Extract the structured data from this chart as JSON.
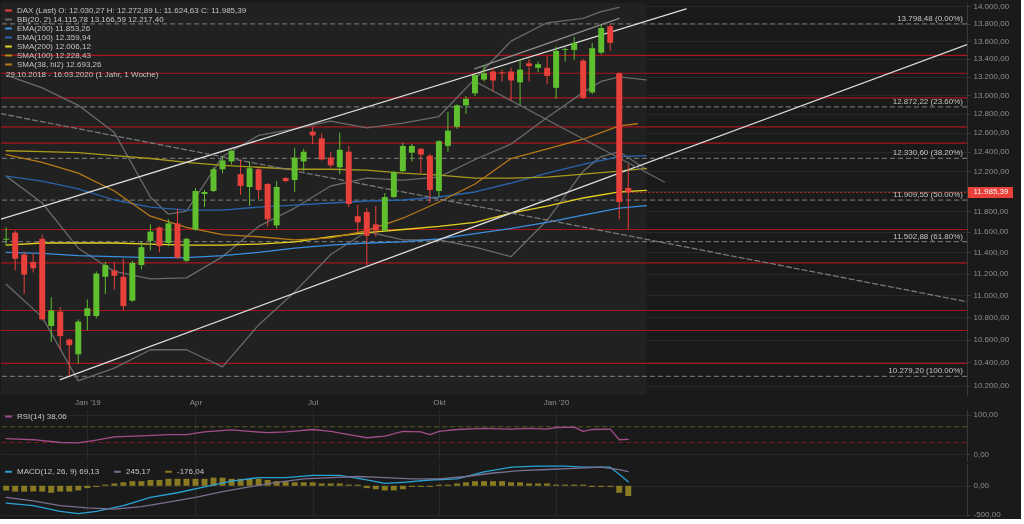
{
  "chart_data": [
    {
      "type": "candlestick",
      "log": "y",
      "xlim": [
        "2018-11-01",
        "2020-11-20"
      ],
      "xticks": [
        {
          "value": "2019-01-07",
          "label": "Jan '19"
        },
        {
          "value": "2019-04-01",
          "label": "Apr"
        },
        {
          "value": "2019-07-01",
          "label": "Jul"
        },
        {
          "value": "2019-10-07",
          "label": "Okt"
        },
        {
          "value": "2020-01-06",
          "label": "Jan '20"
        }
      ],
      "ylim": [
        10120,
        14040
      ],
      "yticks": [
        {
          "value": 10200,
          "label": "10.200,00"
        },
        {
          "value": 10400,
          "label": "10.400,00"
        },
        {
          "value": 10600,
          "label": "10.600,00"
        },
        {
          "value": 10800,
          "label": "10.800,00"
        },
        {
          "value": 11000,
          "label": "11.000,00"
        },
        {
          "value": 11200,
          "label": "11.200,00"
        },
        {
          "value": 11400,
          "label": "11.400,00"
        },
        {
          "value": 11600,
          "label": "11.600,00"
        },
        {
          "value": 11800,
          "label": "11.800,00"
        },
        {
          "value": 12000,
          "label": null
        },
        {
          "value": 12200,
          "label": "12.200,00"
        },
        {
          "value": 12400,
          "label": "12.400,00"
        },
        {
          "value": 12600,
          "label": "12.600,00"
        },
        {
          "value": 12800,
          "label": "12.800,00"
        },
        {
          "value": 13000,
          "label": "13.000,00"
        },
        {
          "value": 13200,
          "label": "13.200,00"
        },
        {
          "value": 13400,
          "label": "13.400,00"
        },
        {
          "value": 13600,
          "label": "13.600,00"
        },
        {
          "value": 13800,
          "label": "13.800,00"
        },
        {
          "value": 14000,
          "label": "14.000,00"
        }
      ],
      "grid": true,
      "legend": "top left",
      "bands": [
        {
          "axis": "x",
          "from": "2018-11-01",
          "to": "2020-03-16",
          "color": "#212121"
        }
      ],
      "ref_lines": [
        {
          "axis": "y",
          "value": 13440,
          "color": "#a8151c"
        },
        {
          "axis": "y",
          "value": 13240,
          "color": "#a8151c"
        },
        {
          "axis": "y",
          "value": 12970,
          "color": "#a8151c"
        },
        {
          "axis": "y",
          "value": 12660,
          "color": "#a8151c"
        },
        {
          "axis": "y",
          "value": 12490,
          "color": "#a8151c"
        },
        {
          "axis": "y",
          "value": 11620,
          "color": "#a8151c"
        },
        {
          "axis": "y",
          "value": 11300,
          "color": "#a8151c"
        },
        {
          "axis": "y",
          "value": 10860,
          "color": "#a8151c"
        },
        {
          "axis": "y",
          "value": 10680,
          "color": "#a8151c"
        },
        {
          "axis": "y",
          "value": 10390,
          "color": "#a8151c"
        },
        {
          "axis": "y",
          "value": 13798.48,
          "label": "13.798,48 (0.00%)",
          "color": "#6e6e6e",
          "line_style": "dashed"
        },
        {
          "axis": "y",
          "value": 12872.22,
          "label": "12.872,22 (23.60%)",
          "color": "#6e6e6e",
          "line_style": "dashed"
        },
        {
          "axis": "y",
          "value": 12330.6,
          "label": "12.330,60 (38.20%)",
          "color": "#6e6e6e",
          "line_style": "dashed"
        },
        {
          "axis": "y",
          "value": 11909.55,
          "label": "11.909,55 (50.00%)",
          "color": "#6e6e6e",
          "line_style": "dashed"
        },
        {
          "axis": "y",
          "value": 11502.88,
          "label": "11.502,88 (61.80%)",
          "color": "#6e6e6e",
          "line_style": "dashed"
        },
        {
          "axis": "y",
          "value": 10279.2,
          "label": "10.279,20 (100.00%)",
          "color": "#6e6e6e",
          "line_style": "dashed"
        }
      ],
      "annotations": [
        "29.10.2018 - 16.03.2020 (1 Jahr, 1 Woche)",
        {
          "text": "11.985,39",
          "x": "2020-03-02",
          "y": 11985.39
        }
      ],
      "series": [
        {
          "type": "candlestick",
          "name": "DAX (Last) O: 12.030,27 H: 12.272,89 L: 11.624,63 C: 11.985,39",
          "x": [
            "2018-11-05",
            "2018-11-12",
            "2018-11-19",
            "2018-11-26",
            "2018-12-03",
            "2018-12-10",
            "2018-12-17",
            "2018-12-24",
            "2018-12-31",
            "2019-01-07",
            "2019-01-14",
            "2019-01-21",
            "2019-01-28",
            "2019-02-04",
            "2019-02-11",
            "2019-02-18",
            "2019-02-25",
            "2019-03-04",
            "2019-03-11",
            "2019-03-18",
            "2019-03-25",
            "2019-04-01",
            "2019-04-08",
            "2019-04-15",
            "2019-04-22",
            "2019-04-29",
            "2019-05-06",
            "2019-05-13",
            "2019-05-20",
            "2019-05-27",
            "2019-06-03",
            "2019-06-10",
            "2019-06-17",
            "2019-06-24",
            "2019-07-01",
            "2019-07-08",
            "2019-07-15",
            "2019-07-22",
            "2019-07-29",
            "2019-08-05",
            "2019-08-12",
            "2019-08-19",
            "2019-08-26",
            "2019-09-02",
            "2019-09-09",
            "2019-09-16",
            "2019-09-23",
            "2019-09-30",
            "2019-10-07",
            "2019-10-14",
            "2019-10-21",
            "2019-10-28",
            "2019-11-04",
            "2019-11-11",
            "2019-11-18",
            "2019-11-25",
            "2019-12-02",
            "2019-12-09",
            "2019-12-16",
            "2019-12-23",
            "2019-12-30",
            "2020-01-06",
            "2020-01-13",
            "2020-01-20",
            "2020-01-27",
            "2020-02-03",
            "2020-02-10",
            "2020-02-17",
            "2020-02-24",
            "2020-03-02"
          ],
          "ohlc": [
            [
              11520,
              11640,
              11470,
              11530
            ],
            [
              11590,
              11610,
              11230,
              11340
            ],
            [
              11380,
              11410,
              11010,
              11190
            ],
            [
              11310,
              11390,
              11210,
              11250
            ],
            [
              11530,
              11570,
              10770,
              10780
            ],
            [
              10720,
              10980,
              10580,
              10860
            ],
            [
              10850,
              10890,
              10510,
              10630
            ],
            [
              10600,
              10610,
              10280,
              10550
            ],
            [
              10470,
              10780,
              10390,
              10760
            ],
            [
              10810,
              10960,
              10680,
              10880
            ],
            [
              10810,
              11220,
              10790,
              11200
            ],
            [
              11170,
              11310,
              11010,
              11280
            ],
            [
              11230,
              11310,
              11050,
              11180
            ],
            [
              11170,
              11340,
              10860,
              10900
            ],
            [
              10950,
              11320,
              10940,
              11300
            ],
            [
              11280,
              11500,
              11240,
              11450
            ],
            [
              11510,
              11670,
              11420,
              11600
            ],
            [
              11640,
              11650,
              11400,
              11460
            ],
            [
              11490,
              11720,
              11460,
              11680
            ],
            [
              11680,
              11820,
              11340,
              11350
            ],
            [
              11320,
              11540,
              11310,
              11530
            ],
            [
              11620,
              12030,
              11610,
              12000
            ],
            [
              11970,
              12010,
              11840,
              11990
            ],
            [
              12000,
              12240,
              11990,
              12220
            ],
            [
              12220,
              12350,
              12180,
              12310
            ],
            [
              12300,
              12420,
              12270,
              12410
            ],
            [
              12170,
              12320,
              11960,
              12050
            ],
            [
              12040,
              12300,
              11850,
              12230
            ],
            [
              12220,
              12230,
              11920,
              12010
            ],
            [
              12070,
              12080,
              11650,
              11720
            ],
            [
              11660,
              12100,
              11630,
              12040
            ],
            [
              12130,
              12140,
              12090,
              12100
            ],
            [
              12110,
              12440,
              11990,
              12340
            ],
            [
              12300,
              12430,
              12200,
              12400
            ],
            [
              12610,
              12660,
              12480,
              12570
            ],
            [
              12540,
              12590,
              12310,
              12320
            ],
            [
              12340,
              12400,
              12240,
              12260
            ],
            [
              12240,
              12600,
              12170,
              12420
            ],
            [
              12400,
              12460,
              11840,
              11870
            ],
            [
              11750,
              11860,
              11600,
              11690
            ],
            [
              11790,
              11830,
              11280,
              11560
            ],
            [
              11670,
              11850,
              11550,
              11610
            ],
            [
              11610,
              11980,
              11600,
              11940
            ],
            [
              11940,
              12200,
              11930,
              12190
            ],
            [
              12200,
              12490,
              12190,
              12460
            ],
            [
              12390,
              12480,
              12300,
              12460
            ],
            [
              12430,
              12440,
              12180,
              12370
            ],
            [
              12360,
              12380,
              11880,
              12010
            ],
            [
              12000,
              12520,
              11940,
              12510
            ],
            [
              12460,
              12820,
              12400,
              12620
            ],
            [
              12660,
              12900,
              12640,
              12890
            ],
            [
              12890,
              12990,
              12800,
              12960
            ],
            [
              13020,
              13230,
              12990,
              13220
            ],
            [
              13170,
              13330,
              13150,
              13240
            ],
            [
              13260,
              13300,
              13040,
              13160
            ],
            [
              13250,
              13280,
              13150,
              13240
            ],
            [
              13260,
              13300,
              12940,
              13160
            ],
            [
              13140,
              13400,
              12890,
              13280
            ],
            [
              13350,
              13400,
              13150,
              13320
            ],
            [
              13300,
              13370,
              13250,
              13340
            ],
            [
              13300,
              13430,
              13120,
              13210
            ],
            [
              13080,
              13540,
              12960,
              13490
            ],
            [
              13500,
              13530,
              13370,
              13510
            ],
            [
              13500,
              13650,
              13390,
              13580
            ],
            [
              13380,
              13400,
              12960,
              12970
            ],
            [
              13030,
              13580,
              13010,
              13520
            ],
            [
              13470,
              13790,
              13450,
              13750
            ],
            [
              13770,
              13800,
              13490,
              13580
            ],
            [
              13240,
              13250,
              11720,
              11890
            ],
            [
              12030.27,
              12272.89,
              11624.63,
              11985.39
            ]
          ],
          "colors": [
            "#5fbf2f",
            "#e8413b",
            "#e8413b",
            "#e8413b",
            "#e8413b",
            "#5fbf2f",
            "#e8413b",
            "#e8413b",
            "#5fbf2f",
            "#5fbf2f",
            "#5fbf2f",
            "#5fbf2f",
            "#e8413b",
            "#e8413b",
            "#5fbf2f",
            "#5fbf2f",
            "#5fbf2f",
            "#e8413b",
            "#5fbf2f",
            "#e8413b",
            "#5fbf2f",
            "#5fbf2f",
            "#5fbf2f",
            "#5fbf2f",
            "#5fbf2f",
            "#5fbf2f",
            "#e8413b",
            "#5fbf2f",
            "#e8413b",
            "#e8413b",
            "#5fbf2f",
            "#e8413b",
            "#5fbf2f",
            "#5fbf2f",
            "#e8413b",
            "#e8413b",
            "#e8413b",
            "#5fbf2f",
            "#e8413b",
            "#e8413b",
            "#e8413b",
            "#e8413b",
            "#5fbf2f",
            "#5fbf2f",
            "#5fbf2f",
            "#5fbf2f",
            "#e8413b",
            "#e8413b",
            "#5fbf2f",
            "#5fbf2f",
            "#5fbf2f",
            "#5fbf2f",
            "#5fbf2f",
            "#5fbf2f",
            "#e8413b",
            "#e8413b",
            "#e8413b",
            "#5fbf2f",
            "#e8413b",
            "#5fbf2f",
            "#e8413b",
            "#5fbf2f",
            "#5fbf2f",
            "#5fbf2f",
            "#e8413b",
            "#5fbf2f",
            "#5fbf2f",
            "#e8413b",
            "#e8413b",
            "#e8413b"
          ]
        },
        {
          "type": "line",
          "name": "BB(20, 2) 14.115,78 13.166,59 12.217,40",
          "color": "#6a6a6a",
          "x": [
            "2018-11-05",
            "2018-12-03",
            "2018-12-31",
            "2019-01-28",
            "2019-02-25",
            "2019-03-11",
            "2019-03-25",
            "2019-04-22",
            "2019-05-20",
            "2019-06-17",
            "2019-07-15",
            "2019-08-12",
            "2019-09-09",
            "2019-10-07",
            "2019-11-04",
            "2019-12-02",
            "2019-12-30",
            "2020-01-27",
            "2020-02-10",
            "2020-02-24"
          ],
          "values": [
            13220,
            13080,
            12890,
            12600,
            11940,
            11770,
            11800,
            12350,
            12570,
            12640,
            12720,
            12650,
            12700,
            12770,
            13180,
            13600,
            13810,
            13860,
            13940,
            13990
          ]
        },
        {
          "type": "line",
          "color": "#6a6a6a",
          "x": [
            "2018-11-05",
            "2018-12-03",
            "2018-12-31",
            "2019-01-28",
            "2019-02-25",
            "2019-03-25",
            "2019-04-22",
            "2019-05-20",
            "2019-06-17",
            "2019-07-15",
            "2019-08-12",
            "2019-09-09",
            "2019-10-07",
            "2019-11-04",
            "2019-12-02",
            "2019-12-30",
            "2020-01-27",
            "2020-02-10",
            "2020-02-24",
            "2020-03-16"
          ],
          "values": [
            12150,
            11880,
            11440,
            11220,
            11150,
            11160,
            11360,
            11650,
            11830,
            12050,
            12130,
            12110,
            12140,
            12320,
            12480,
            12760,
            13030,
            13150,
            13200,
            13166.59
          ]
        },
        {
          "type": "line",
          "color": "#6a6a6a",
          "x": [
            "2018-11-05",
            "2018-12-03",
            "2018-12-31",
            "2019-01-28",
            "2019-02-25",
            "2019-03-25",
            "2019-04-22",
            "2019-05-20",
            "2019-06-17",
            "2019-07-15",
            "2019-08-12",
            "2019-09-09",
            "2019-10-07",
            "2019-11-04",
            "2019-12-02",
            "2019-12-30",
            "2020-01-27",
            "2020-02-10",
            "2020-02-24",
            "2020-03-16"
          ],
          "values": [
            11100,
            10800,
            10240,
            10350,
            10510,
            10510,
            10360,
            10730,
            11030,
            11380,
            11600,
            11520,
            11520,
            11450,
            11360,
            11710,
            12200,
            12350,
            12400,
            12217.4
          ]
        },
        {
          "type": "line",
          "name": "EMA(200) 11.853,26",
          "color": "#3a8ee0",
          "x": [
            "2018-11-05",
            "2018-12-03",
            "2018-12-31",
            "2019-01-28",
            "2019-02-25",
            "2019-03-25",
            "2019-04-22",
            "2019-05-20",
            "2019-06-17",
            "2019-07-15",
            "2019-08-12",
            "2019-09-09",
            "2019-10-07",
            "2019-11-04",
            "2019-12-02",
            "2019-12-30",
            "2020-01-27",
            "2020-02-24",
            "2020-03-16"
          ],
          "values": [
            11400,
            11390,
            11370,
            11360,
            11350,
            11350,
            11370,
            11400,
            11440,
            11470,
            11490,
            11500,
            11530,
            11580,
            11630,
            11690,
            11760,
            11830,
            11853.26
          ]
        },
        {
          "type": "line",
          "name": "EMA(100) 12.359,94",
          "color": "#2a64ad",
          "x": [
            "2018-11-05",
            "2018-12-03",
            "2018-12-31",
            "2019-01-28",
            "2019-02-25",
            "2019-03-25",
            "2019-04-22",
            "2019-05-20",
            "2019-06-17",
            "2019-07-15",
            "2019-08-12",
            "2019-09-09",
            "2019-10-07",
            "2019-11-04",
            "2019-12-02",
            "2019-12-30",
            "2020-01-27",
            "2020-02-24",
            "2020-03-16"
          ],
          "values": [
            12150,
            12100,
            12020,
            11910,
            11840,
            11810,
            11810,
            11840,
            11860,
            11880,
            11900,
            11910,
            11940,
            11990,
            12080,
            12180,
            12270,
            12350,
            12359.94
          ]
        },
        {
          "type": "line",
          "name": "SMA(200) 12.006,12",
          "color": "#e6d21e",
          "x": [
            "2018-11-05",
            "2018-12-03",
            "2018-12-31",
            "2019-01-28",
            "2019-02-25",
            "2019-03-25",
            "2019-04-22",
            "2019-05-20",
            "2019-06-17",
            "2019-07-15",
            "2019-08-12",
            "2019-09-09",
            "2019-10-07",
            "2019-11-04",
            "2019-12-02",
            "2019-12-30",
            "2020-01-27",
            "2020-02-24",
            "2020-03-16"
          ],
          "values": [
            11470,
            11490,
            11490,
            11490,
            11480,
            11470,
            11470,
            11480,
            11500,
            11550,
            11590,
            11620,
            11650,
            11690,
            11780,
            11850,
            11930,
            11990,
            12006.12
          ]
        },
        {
          "type": "line",
          "name": "SMA(100) 12.228,43",
          "color": "#aa9a1c",
          "x": [
            "2018-11-05",
            "2018-12-03",
            "2018-12-31",
            "2019-01-28",
            "2019-02-25",
            "2019-03-25",
            "2019-04-22",
            "2019-05-20",
            "2019-06-17",
            "2019-07-15",
            "2019-08-12",
            "2019-09-09",
            "2019-10-07",
            "2019-11-04",
            "2019-12-02",
            "2019-12-30",
            "2020-01-27",
            "2020-02-24",
            "2020-03-16"
          ],
          "values": [
            12410,
            12400,
            12390,
            12360,
            12330,
            12290,
            12260,
            12240,
            12220,
            12220,
            12210,
            12180,
            12160,
            12130,
            12130,
            12140,
            12170,
            12200,
            12228.43
          ]
        },
        {
          "type": "line",
          "name": "SMA(38, hl2) 12.693,26",
          "color": "#b87a16",
          "x": [
            "2018-11-05",
            "2018-12-03",
            "2018-12-31",
            "2019-01-28",
            "2019-02-25",
            "2019-03-25",
            "2019-04-22",
            "2019-05-20",
            "2019-06-17",
            "2019-07-15",
            "2019-08-12",
            "2019-09-09",
            "2019-10-07",
            "2019-11-04",
            "2019-12-02",
            "2019-12-30",
            "2020-01-27",
            "2020-02-24",
            "2020-03-09"
          ],
          "values": [
            12370,
            12290,
            12180,
            12000,
            11750,
            11640,
            11570,
            11550,
            11520,
            11540,
            11610,
            11730,
            11890,
            12070,
            12330,
            12430,
            12530,
            12670,
            12693.26
          ]
        },
        {
          "type": "line",
          "color": "#dedede",
          "x": [
            "2018-11-01",
            "2020-04-16"
          ],
          "values": [
            11720,
            13970
          ]
        },
        {
          "type": "line",
          "color": "#dedede",
          "x": [
            "2018-12-17",
            "2020-11-20"
          ],
          "values": [
            10250,
            13560
          ]
        },
        {
          "type": "line",
          "color": "#777777",
          "line_style": "dashed",
          "x": [
            "2018-11-01",
            "2020-11-20"
          ],
          "values": [
            12800,
            10940
          ]
        },
        {
          "type": "line",
          "color": "#8a8a8a",
          "x": [
            "2019-11-04",
            "2020-02-24"
          ],
          "values": [
            13290,
            13860
          ]
        },
        {
          "type": "line",
          "color": "#666666",
          "x": [
            "2019-11-04",
            "2020-03-30"
          ],
          "values": [
            13150,
            12090
          ]
        }
      ]
    },
    {
      "type": "line",
      "xlim": [
        "2018-11-01",
        "2020-11-20"
      ],
      "xticks": [
        {
          "value": "2019-01-07",
          "label": null
        },
        {
          "value": "2019-04-01",
          "label": null
        },
        {
          "value": "2019-07-01",
          "label": null
        },
        {
          "value": "2019-10-07",
          "label": null
        },
        {
          "value": "2020-01-06",
          "label": null
        }
      ],
      "tick_labels": "y",
      "ylim": [
        -17,
        115
      ],
      "yticks": [
        {
          "value": 100,
          "label": "100,00"
        },
        {
          "value": 0,
          "label": "0,00"
        }
      ],
      "grid": true,
      "legend": "top left",
      "ref_lines": [
        {
          "axis": "y",
          "value": 70,
          "color": "#5c5c22",
          "line_style": "dashed"
        },
        {
          "axis": "y",
          "value": 30,
          "color": "#7a1c1c",
          "line_style": "dashed"
        }
      ],
      "series": [
        {
          "name": "RSI(14) 38,06",
          "color": "#a24d8a",
          "x": [
            "2018-11-05",
            "2018-11-26",
            "2018-12-17",
            "2018-12-31",
            "2019-01-14",
            "2019-01-28",
            "2019-02-18",
            "2019-03-11",
            "2019-03-25",
            "2019-04-08",
            "2019-04-29",
            "2019-05-13",
            "2019-05-27",
            "2019-06-10",
            "2019-07-01",
            "2019-07-15",
            "2019-07-29",
            "2019-08-12",
            "2019-08-26",
            "2019-09-09",
            "2019-09-23",
            "2019-09-30",
            "2019-10-07",
            "2019-10-21",
            "2019-11-11",
            "2019-12-02",
            "2019-12-16",
            "2019-12-30",
            "2020-01-06",
            "2020-01-20",
            "2020-01-27",
            "2020-02-03",
            "2020-02-17",
            "2020-02-24",
            "2020-03-02"
          ],
          "values": [
            40,
            37,
            30,
            29,
            36,
            44,
            47,
            50,
            50,
            57,
            62,
            58,
            55,
            57,
            63,
            58,
            50,
            42,
            46,
            58,
            57,
            50,
            58,
            63,
            66,
            64,
            66,
            64,
            68,
            69,
            58,
            63,
            64,
            37,
            38.06
          ]
        }
      ]
    },
    {
      "type": "line",
      "xlim": [
        "2018-11-01",
        "2020-11-20"
      ],
      "xticks": [
        {
          "value": "2019-01-07",
          "label": null
        },
        {
          "value": "2019-04-01",
          "label": null
        },
        {
          "value": "2019-07-01",
          "label": null
        },
        {
          "value": "2019-10-07",
          "label": null
        },
        {
          "value": "2020-01-06",
          "label": null
        }
      ],
      "tick_labels": "y",
      "ylim": [
        -520,
        375
      ],
      "yticks": [
        {
          "value": 0,
          "label": "0,00"
        },
        {
          "value": -500,
          "label": "-500,00"
        }
      ],
      "grid": true,
      "legend": "top left",
      "series": [
        {
          "name": "MACD(12, 26, 9) 69,13",
          "color": "#2aa3d6",
          "x": [
            "2018-11-05",
            "2018-11-26",
            "2018-12-17",
            "2018-12-31",
            "2019-01-14",
            "2019-02-04",
            "2019-02-25",
            "2019-03-18",
            "2019-04-08",
            "2019-04-29",
            "2019-05-20",
            "2019-06-10",
            "2019-07-01",
            "2019-07-22",
            "2019-08-12",
            "2019-08-26",
            "2019-09-09",
            "2019-09-30",
            "2019-10-21",
            "2019-11-11",
            "2019-12-02",
            "2019-12-23",
            "2020-01-13",
            "2020-01-27",
            "2020-02-10",
            "2020-02-17",
            "2020-02-24",
            "2020-03-02"
          ],
          "values": [
            -300,
            -340,
            -440,
            -480,
            -440,
            -340,
            -200,
            -120,
            -20,
            80,
            140,
            140,
            180,
            180,
            100,
            40,
            60,
            100,
            120,
            240,
            320,
            340,
            340,
            320,
            320,
            320,
            200,
            69.13
          ]
        },
        {
          "name": "245,17",
          "color": "#7b6f90",
          "x": [
            "2018-11-05",
            "2018-11-26",
            "2018-12-17",
            "2019-01-07",
            "2019-01-28",
            "2019-02-18",
            "2019-03-11",
            "2019-04-01",
            "2019-04-22",
            "2019-05-13",
            "2019-06-03",
            "2019-06-24",
            "2019-07-15",
            "2019-08-05",
            "2019-08-26",
            "2019-09-16",
            "2019-10-07",
            "2019-10-28",
            "2019-11-18",
            "2019-12-09",
            "2019-12-30",
            "2020-01-20",
            "2020-02-10",
            "2020-02-24",
            "2020-03-02"
          ],
          "values": [
            -200,
            -260,
            -340,
            -380,
            -400,
            -360,
            -280,
            -200,
            -100,
            -20,
            60,
            120,
            140,
            160,
            140,
            120,
            120,
            160,
            220,
            260,
            280,
            300,
            320,
            280,
            245.17
          ]
        },
        {
          "type": "bar",
          "name": "-176,04",
          "color": "#8a7a22",
          "x": [
            "2018-11-05",
            "2018-11-12",
            "2018-11-19",
            "2018-11-26",
            "2018-12-03",
            "2018-12-10",
            "2018-12-17",
            "2018-12-24",
            "2018-12-31",
            "2019-01-07",
            "2019-01-14",
            "2019-01-21",
            "2019-01-28",
            "2019-02-04",
            "2019-02-11",
            "2019-02-18",
            "2019-02-25",
            "2019-03-04",
            "2019-03-11",
            "2019-03-18",
            "2019-03-25",
            "2019-04-01",
            "2019-04-08",
            "2019-04-15",
            "2019-04-22",
            "2019-04-29",
            "2019-05-06",
            "2019-05-13",
            "2019-05-20",
            "2019-05-27",
            "2019-06-03",
            "2019-06-10",
            "2019-06-17",
            "2019-06-24",
            "2019-07-01",
            "2019-07-08",
            "2019-07-15",
            "2019-07-22",
            "2019-07-29",
            "2019-08-05",
            "2019-08-12",
            "2019-08-19",
            "2019-08-26",
            "2019-09-02",
            "2019-09-09",
            "2019-09-16",
            "2019-09-23",
            "2019-09-30",
            "2019-10-07",
            "2019-10-14",
            "2019-10-21",
            "2019-10-28",
            "2019-11-04",
            "2019-11-11",
            "2019-11-18",
            "2019-11-25",
            "2019-12-02",
            "2019-12-09",
            "2019-12-16",
            "2019-12-23",
            "2019-12-30",
            "2020-01-06",
            "2020-01-13",
            "2020-01-20",
            "2020-01-27",
            "2020-02-03",
            "2020-02-10",
            "2020-02-17",
            "2020-02-24",
            "2020-03-02"
          ],
          "values": [
            -80,
            -100,
            -100,
            -100,
            -100,
            -120,
            -100,
            -100,
            -80,
            -40,
            -20,
            20,
            40,
            60,
            80,
            80,
            100,
            100,
            120,
            120,
            120,
            120,
            120,
            140,
            140,
            120,
            120,
            120,
            120,
            100,
            80,
            80,
            60,
            60,
            60,
            40,
            40,
            40,
            20,
            20,
            -40,
            -60,
            -80,
            -80,
            -60,
            -20,
            -20,
            -20,
            20,
            20,
            40,
            60,
            80,
            80,
            80,
            80,
            60,
            60,
            40,
            40,
            40,
            20,
            20,
            20,
            20,
            -20,
            -20,
            -20,
            -120,
            -176.04
          ]
        }
      ]
    }
  ]
}
